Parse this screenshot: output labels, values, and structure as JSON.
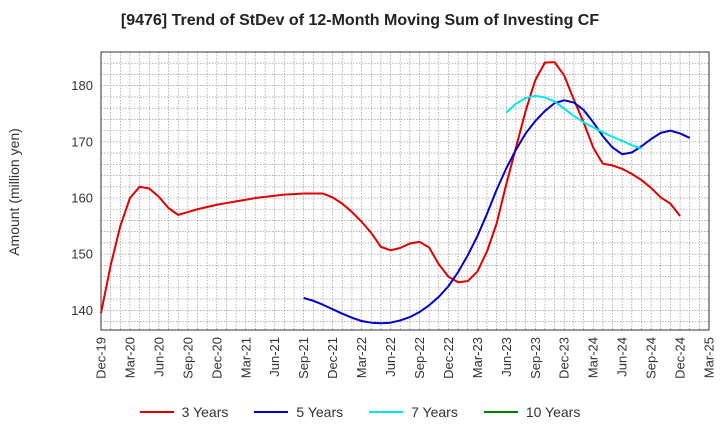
{
  "chart_data": {
    "type": "line",
    "title": "[9476]  Trend of StDev of 12-Month Moving Sum of Investing CF",
    "ylabel": "Amount (million yen)",
    "xlabel": "",
    "ylim": [
      136.5,
      186
    ],
    "y_ticks": [
      140,
      150,
      160,
      170,
      180
    ],
    "x_tick_labels": [
      "Dec-19",
      "Mar-20",
      "Jun-20",
      "Sep-20",
      "Dec-20",
      "Mar-21",
      "Jun-21",
      "Sep-21",
      "Dec-21",
      "Mar-22",
      "Jun-22",
      "Sep-22",
      "Dec-22",
      "Mar-23",
      "Jun-23",
      "Sep-23",
      "Dec-23",
      "Mar-24",
      "Jun-24",
      "Sep-24",
      "Dec-24",
      "Mar-25"
    ],
    "x_start": "Dec-19",
    "x_end": "Mar-25",
    "grid": true,
    "legend_position": "bottom",
    "series": [
      {
        "name": "3 Years",
        "color": "#e00000",
        "start": "Dec-19",
        "values": [
          139.5,
          148,
          155,
          160,
          162,
          161.7,
          160.2,
          158.2,
          157,
          157.5,
          158,
          158.4,
          158.8,
          159.1,
          159.4,
          159.7,
          160,
          160.2,
          160.4,
          160.6,
          160.7,
          160.8,
          160.8,
          160.8,
          160.1,
          159,
          157.5,
          155.8,
          153.8,
          151.3,
          150.7,
          151.1,
          151.9,
          152.2,
          151.2,
          148.2,
          146,
          145,
          145.2,
          146.9,
          150.5,
          155.5,
          162.5,
          169,
          175.5,
          181,
          184.1,
          184.2,
          181.8,
          177.5,
          173.5,
          169,
          166.1,
          165.8,
          165.2,
          164.3,
          163.2,
          161.8,
          160.1,
          159,
          156.8
        ]
      },
      {
        "name": "5 Years",
        "color": "#0000cc",
        "start": "Sep-21",
        "values": [
          142.2,
          141.7,
          141,
          140.2,
          139.4,
          138.7,
          138.1,
          137.8,
          137.7,
          137.8,
          138.2,
          138.8,
          139.7,
          140.9,
          142.4,
          144.3,
          146.8,
          149.8,
          153.2,
          157.2,
          161.5,
          165.3,
          168.6,
          171.5,
          173.7,
          175.5,
          176.9,
          177.4,
          177,
          175.7,
          173.5,
          171,
          169,
          167.8,
          168.1,
          169.2,
          170.5,
          171.6,
          172,
          171.5,
          170.7
        ]
      },
      {
        "name": "7 Years",
        "color": "#00e5ee",
        "start": "Jun-23",
        "values": [
          175.2,
          176.8,
          177.8,
          178.2,
          177.9,
          177.2,
          175.9,
          174.6,
          173.5,
          172.6,
          171.7,
          170.9,
          170.2,
          169.4,
          168.8
        ]
      },
      {
        "name": "10 Years",
        "color": "#008000",
        "start": "Sep-24",
        "values": []
      }
    ]
  }
}
